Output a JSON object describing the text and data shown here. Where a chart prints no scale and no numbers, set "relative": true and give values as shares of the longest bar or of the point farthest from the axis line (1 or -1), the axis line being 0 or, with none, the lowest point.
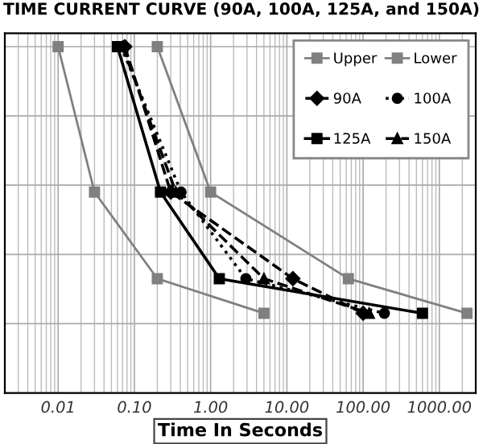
{
  "chart_data": {
    "type": "line",
    "title": "TIME CURRENT CURVE (90A, 100A, 125A, and 150A)",
    "xlabel": "Time In Seconds",
    "relative": true,
    "log": "x",
    "grid": true,
    "legend": "top right",
    "tick_labels": "x",
    "xlim": [
      0.002,
      3000
    ],
    "xticks": [
      {
        "value": 0.01,
        "label": "0.01"
      },
      {
        "value": 0.1,
        "label": "0.10"
      },
      {
        "value": 1,
        "label": "1.00"
      },
      {
        "value": 10,
        "label": "10.00"
      },
      {
        "value": 100,
        "label": "100.00"
      },
      {
        "value": 1000,
        "label": "1000.00"
      }
    ],
    "series": [
      {
        "name": "Upper",
        "color": "#808080",
        "x": [
          0.01,
          0.03,
          0.2,
          5
        ],
        "values": [
          1,
          0.58,
          0.33,
          0.23
        ],
        "marker": "square",
        "line_style": "solid"
      },
      {
        "name": "Lower",
        "color": "#808080",
        "x": [
          0.2,
          1,
          64,
          2300
        ],
        "values": [
          1,
          0.58,
          0.33,
          0.23
        ],
        "marker": "square",
        "line_style": "solid"
      },
      {
        "name": "90A",
        "color": "#000000",
        "x": [
          0.075,
          0.3,
          12,
          100
        ],
        "values": [
          1,
          0.58,
          0.33,
          0.23
        ],
        "marker": "diamond",
        "line_style": "dashed"
      },
      {
        "name": "100A",
        "color": "#000000",
        "x": [
          0.067,
          0.41,
          2.9,
          190
        ],
        "values": [
          1,
          0.58,
          0.33,
          0.23
        ],
        "marker": "circle",
        "line_style": "dotted"
      },
      {
        "name": "125A",
        "color": "#000000",
        "x": [
          0.06,
          0.22,
          1.3,
          600
        ],
        "values": [
          1,
          0.58,
          0.33,
          0.23
        ],
        "marker": "square",
        "line_style": "solid"
      },
      {
        "name": "150A",
        "color": "#000000",
        "x": [
          0.07,
          0.35,
          5,
          120
        ],
        "values": [
          1,
          0.58,
          0.33,
          0.23
        ],
        "marker": "triangle",
        "line_style": "dashed"
      }
    ]
  }
}
